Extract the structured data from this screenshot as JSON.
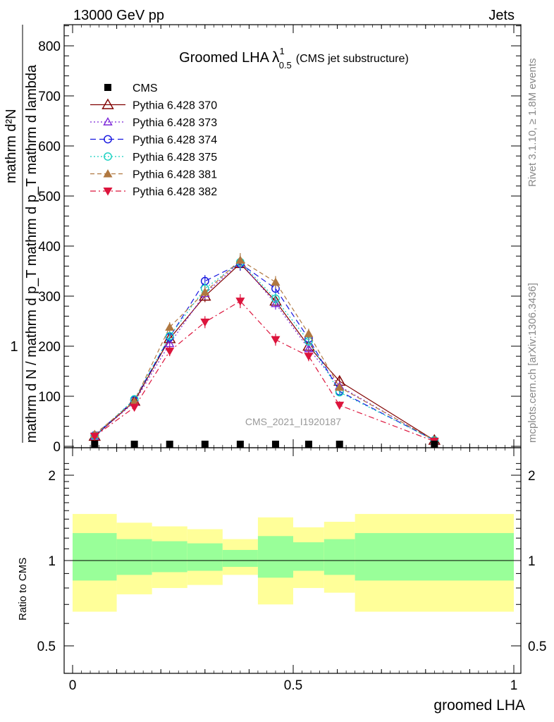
{
  "header": {
    "energy_label": "13000 GeV pp",
    "category_label": "Jets",
    "watermark": "CMS_2021_I1920187",
    "side_label_rivet": "Rivet 3.1.10, ≥ 1.8M events",
    "side_label_mcplots": "mcplots.cern.ch [arXiv:1306.3436]"
  },
  "chart_data": {
    "type": "line",
    "title": {
      "main": "Groomed LHA",
      "lambda": "λ",
      "sup": "1",
      "sub": "0.5",
      "extra": "(CMS jet substructure)"
    },
    "ylabel": {
      "one": "1",
      "top": "mathrm d²N",
      "bottom": "mathrm d N / mathrm d p_T mathrm d p_T mathrm d lambda"
    },
    "xlabel": "groomed LHA",
    "ratio_ylabel": "Ratio to CMS",
    "xlim": [
      0,
      1
    ],
    "ylim": [
      0,
      850
    ],
    "ratio_ylim": [
      0.35,
      2.3
    ],
    "x_ticks": [
      "0",
      "0.5",
      "1"
    ],
    "y_ticks": [
      "0",
      "100",
      "200",
      "300",
      "400",
      "500",
      "600",
      "700",
      "800"
    ],
    "ratio_ticks": [
      "0.5",
      "1",
      "2"
    ],
    "x": [
      0.05,
      0.14,
      0.22,
      0.3,
      0.38,
      0.46,
      0.535,
      0.605,
      0.82
    ],
    "data": {
      "name": "CMS",
      "values": [
        1.2,
        1.5,
        2.0,
        3.0,
        2.8,
        2.0,
        1.5,
        1.0,
        0.5
      ],
      "bin_edges": [
        0,
        0.1,
        0.18,
        0.26,
        0.34,
        0.42,
        0.5,
        0.57,
        0.64,
        1.0
      ],
      "band_outer": [
        [
          0.66,
          1.46
        ],
        [
          0.76,
          1.36
        ],
        [
          0.8,
          1.32
        ],
        [
          0.82,
          1.29
        ],
        [
          0.89,
          1.19
        ],
        [
          0.7,
          1.42
        ],
        [
          0.8,
          1.31
        ],
        [
          0.77,
          1.37
        ],
        [
          0.66,
          1.46
        ]
      ],
      "band_inner": [
        [
          0.85,
          1.25
        ],
        [
          0.89,
          1.19
        ],
        [
          0.91,
          1.17
        ],
        [
          0.92,
          1.15
        ],
        [
          0.95,
          1.09
        ],
        [
          0.87,
          1.22
        ],
        [
          0.92,
          1.16
        ],
        [
          0.89,
          1.19
        ],
        [
          0.85,
          1.25
        ]
      ]
    },
    "series": [
      {
        "name": "Pythia 6.428 370",
        "color": "#800000",
        "marker": "triangle-open",
        "dash": "",
        "values": [
          20,
          90,
          215,
          300,
          365,
          290,
          200,
          130,
          12
        ],
        "errors": [
          4,
          6,
          10,
          12,
          14,
          12,
          10,
          8,
          3
        ]
      },
      {
        "name": "Pythia 6.428 373",
        "color": "#7b24d8",
        "marker": "triangle-open-small",
        "dash": "2,3",
        "values": [
          20,
          88,
          205,
          305,
          368,
          285,
          195,
          120,
          11
        ],
        "errors": [
          4,
          6,
          10,
          12,
          14,
          12,
          10,
          8,
          3
        ]
      },
      {
        "name": "Pythia 6.428 374",
        "color": "#1515e0",
        "marker": "circle-open",
        "dash": "8,5",
        "values": [
          22,
          92,
          218,
          330,
          365,
          315,
          215,
          110,
          12
        ],
        "errors": [
          4,
          6,
          10,
          12,
          14,
          12,
          10,
          8,
          3
        ]
      },
      {
        "name": "Pythia 6.428 375",
        "color": "#17d0c0",
        "marker": "circle-open",
        "dash": "2,3",
        "values": [
          21,
          94,
          220,
          315,
          368,
          295,
          210,
          108,
          12
        ],
        "errors": [
          4,
          6,
          10,
          12,
          14,
          12,
          10,
          8,
          3
        ]
      },
      {
        "name": "Pythia 6.428 381",
        "color": "#b07840",
        "marker": "triangle-filled",
        "dash": "6,4",
        "values": [
          24,
          90,
          238,
          308,
          372,
          328,
          225,
          118,
          12
        ],
        "errors": [
          4,
          6,
          10,
          12,
          14,
          12,
          10,
          8,
          3
        ]
      },
      {
        "name": "Pythia 6.428 382",
        "color": "#dc143c",
        "marker": "triangle-down-filled",
        "dash": "8,4,2,4",
        "values": [
          20,
          78,
          190,
          248,
          290,
          213,
          180,
          82,
          10
        ],
        "errors": [
          4,
          6,
          10,
          12,
          14,
          12,
          10,
          8,
          3
        ]
      }
    ],
    "colors": {
      "band_outer": "#ffff99",
      "band_inner": "#99ff99",
      "data_marker": "#000000"
    }
  }
}
